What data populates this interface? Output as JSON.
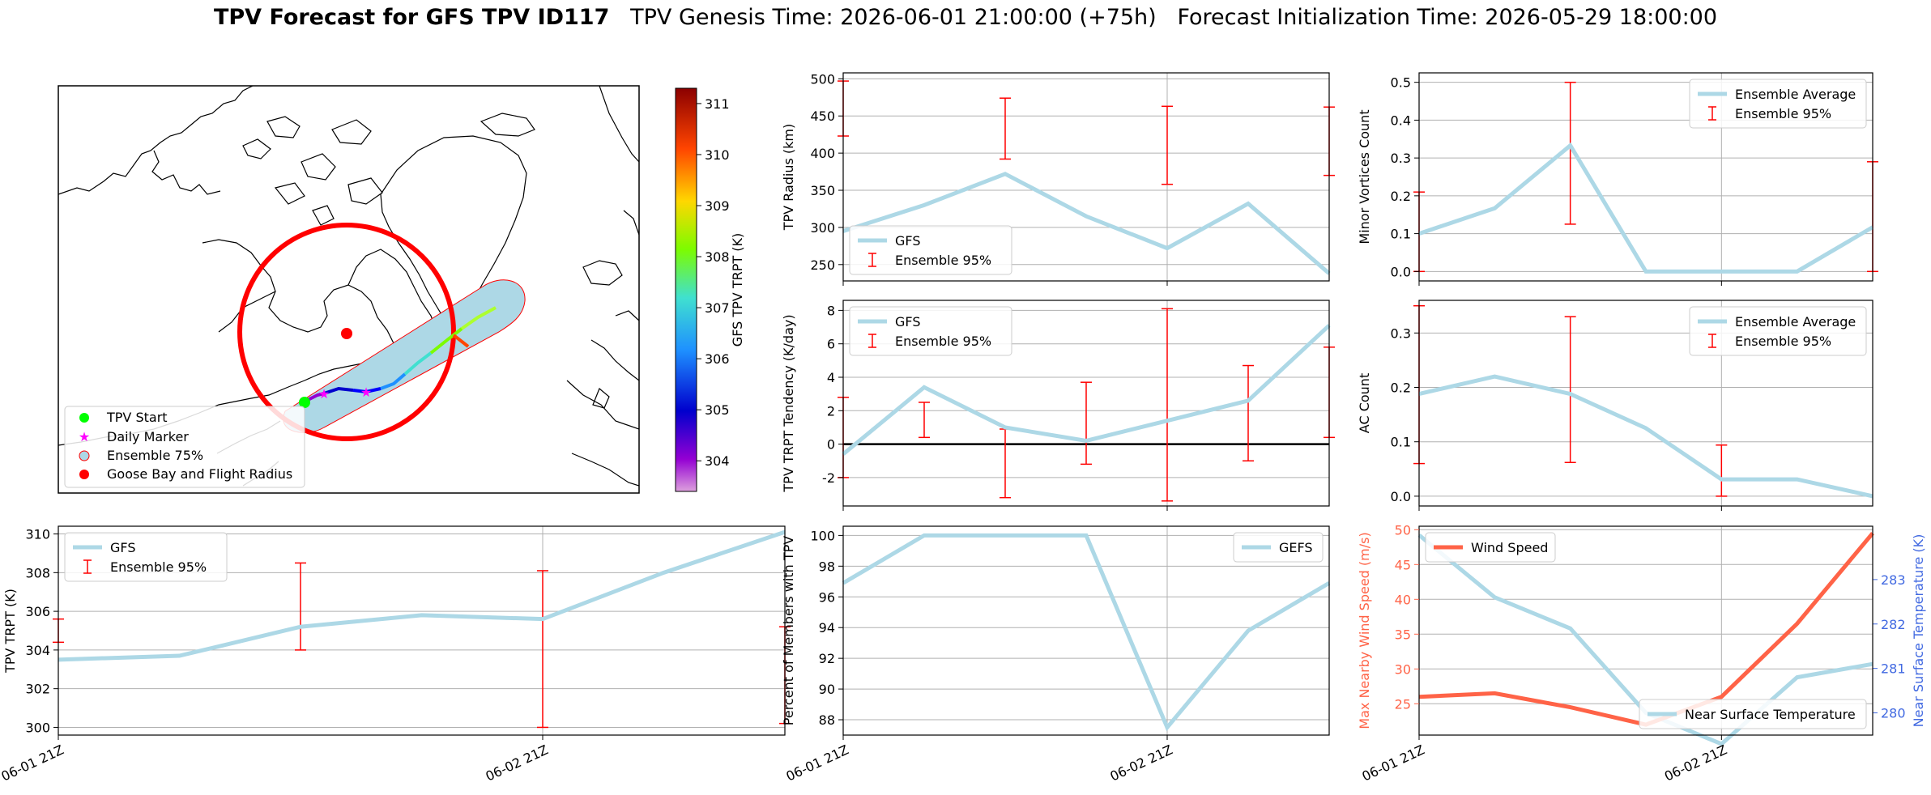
{
  "title": {
    "bold": "TPV Forecast for GFS TPV ID117",
    "genesis": "TPV Genesis Time: 2026-06-01 21:00:00 (+75h)",
    "init": "Forecast Initialization Time: 2026-05-29 18:00:00"
  },
  "colors": {
    "gfs": "#add8e6",
    "ensemble": "#ff0000",
    "wind": "#ff6347",
    "temp_axis": "#4169e1",
    "zero_line": "#000000"
  },
  "time_ticks": [
    "06-01 21Z",
    "06-02 21Z"
  ],
  "map": {
    "legend": [
      "TPV Start",
      "Daily Marker",
      "Ensemble 75%",
      "Goose Bay and Flight Radius"
    ],
    "colorbar_label": "GFS TPV TRPT (K)",
    "colorbar_ticks": [
      304,
      305,
      306,
      307,
      308,
      309,
      310,
      311
    ],
    "colorbar_range": [
      303.4,
      311.3
    ]
  },
  "chart_data": [
    {
      "id": "radius",
      "type": "line",
      "ylabel": "TPV Radius (km)",
      "ylim": [
        228,
        508
      ],
      "yticks": [
        250,
        300,
        350,
        400,
        450,
        500
      ],
      "legend": [
        "GFS",
        "Ensemble 95%"
      ],
      "legend_loc": "lower-left",
      "x": [
        0,
        0.25,
        0.5,
        0.75,
        1.0,
        1.25,
        1.5
      ],
      "series": [
        {
          "name": "GFS",
          "values": [
            295,
            330,
            372,
            315,
            272,
            332,
            238
          ]
        }
      ],
      "errorbars": [
        {
          "x": 0,
          "low": 423,
          "high": 497
        },
        {
          "x": 0.5,
          "low": 392,
          "high": 474
        },
        {
          "x": 1.0,
          "low": 358,
          "high": 463
        },
        {
          "x": 1.5,
          "low": 370,
          "high": 462
        }
      ]
    },
    {
      "id": "minor",
      "type": "line",
      "ylabel": "Minor Vortices Count",
      "ylim": [
        -0.025,
        0.525
      ],
      "yticks": [
        0.0,
        0.1,
        0.2,
        0.3,
        0.4,
        0.5
      ],
      "legend": [
        "Ensemble Average",
        "Ensemble 95%"
      ],
      "legend_loc": "upper-right",
      "x": [
        0,
        0.25,
        0.5,
        0.75,
        1.0,
        1.25,
        1.5
      ],
      "series": [
        {
          "name": "Ensemble Average",
          "values": [
            0.1,
            0.167,
            0.333,
            0.0,
            0.0,
            0.0,
            0.117
          ]
        }
      ],
      "errorbars": [
        {
          "x": 0,
          "low": 0.0,
          "high": 0.21
        },
        {
          "x": 0.5,
          "low": 0.125,
          "high": 0.5
        },
        {
          "x": 1.0,
          "low": 0.0,
          "high": 0.0
        },
        {
          "x": 1.5,
          "low": 0.0,
          "high": 0.29
        }
      ]
    },
    {
      "id": "tendency",
      "type": "line",
      "ylabel": "TPV TRPT Tendency (K/day)",
      "ylim": [
        -3.7,
        8.6
      ],
      "yticks": [
        -2,
        0,
        2,
        4,
        6,
        8
      ],
      "zero_line": true,
      "legend": [
        "GFS",
        "Ensemble 95%"
      ],
      "legend_loc": "upper-left",
      "x": [
        0,
        0.25,
        0.5,
        0.75,
        1.0,
        1.25,
        1.5
      ],
      "series": [
        {
          "name": "GFS",
          "values": [
            -0.6,
            3.4,
            1.0,
            0.2,
            1.4,
            2.6,
            7.1
          ]
        }
      ],
      "errorbars": [
        {
          "x": 0,
          "low": -2.0,
          "high": 2.8
        },
        {
          "x": 0.25,
          "low": 0.4,
          "high": 2.5
        },
        {
          "x": 0.5,
          "low": -3.2,
          "high": 0.9
        },
        {
          "x": 0.75,
          "low": -1.2,
          "high": 3.7
        },
        {
          "x": 1.0,
          "low": -3.4,
          "high": 8.1
        },
        {
          "x": 1.25,
          "low": -1.0,
          "high": 4.7
        },
        {
          "x": 1.5,
          "low": 0.4,
          "high": 5.8
        }
      ]
    },
    {
      "id": "ac",
      "type": "line",
      "ylabel": "AC Count",
      "ylim": [
        -0.018,
        0.36
      ],
      "yticks": [
        0.0,
        0.1,
        0.2,
        0.3
      ],
      "legend": [
        "Ensemble Average",
        "Ensemble 95%"
      ],
      "legend_loc": "upper-right",
      "x": [
        0,
        0.25,
        0.5,
        0.75,
        1.0,
        1.25,
        1.5
      ],
      "series": [
        {
          "name": "Ensemble Average",
          "values": [
            0.188,
            0.22,
            0.188,
            0.125,
            0.031,
            0.031,
            0.0
          ]
        }
      ],
      "errorbars": [
        {
          "x": 0,
          "low": 0.06,
          "high": 0.35
        },
        {
          "x": 0.5,
          "low": 0.062,
          "high": 0.33
        },
        {
          "x": 1.0,
          "low": 0.0,
          "high": 0.094
        }
      ]
    },
    {
      "id": "trpt",
      "type": "line",
      "ylabel": "TPV TRPT (K)",
      "ylim": [
        299.6,
        310.4
      ],
      "yticks": [
        300,
        302,
        304,
        306,
        308,
        310
      ],
      "legend": [
        "GFS",
        "Ensemble 95%"
      ],
      "legend_loc": "upper-left",
      "x": [
        0,
        0.25,
        0.5,
        0.75,
        1.0,
        1.25,
        1.5
      ],
      "series": [
        {
          "name": "GFS",
          "values": [
            303.5,
            303.7,
            305.2,
            305.8,
            305.6,
            308.0,
            310.1
          ]
        }
      ],
      "errorbars": [
        {
          "x": 0,
          "low": 304.4,
          "high": 305.6
        },
        {
          "x": 0.5,
          "low": 304.0,
          "high": 308.5
        },
        {
          "x": 1.0,
          "low": 300.0,
          "high": 308.1
        },
        {
          "x": 1.5,
          "low": 300.2,
          "high": 305.2
        }
      ]
    },
    {
      "id": "percent",
      "type": "line",
      "ylabel": "Percent of Members with TPV",
      "ylim": [
        87.0,
        100.6
      ],
      "yticks": [
        88,
        90,
        92,
        94,
        96,
        98,
        100
      ],
      "legend": [
        "GEFS"
      ],
      "legend_loc": "upper-right",
      "x": [
        0,
        0.25,
        0.5,
        0.75,
        1.0,
        1.25,
        1.5
      ],
      "series": [
        {
          "name": "GEFS",
          "values": [
            96.9,
            100.0,
            100.0,
            100.0,
            87.5,
            93.8,
            96.9
          ]
        }
      ]
    },
    {
      "id": "wind",
      "type": "line",
      "ylabel": "Max Nearby Wind Speed (m/s)",
      "ylabel_right": "Near Surface Temperature (K)",
      "ylim": [
        20.5,
        50.5
      ],
      "yticks": [
        25,
        30,
        35,
        40,
        45,
        50
      ],
      "ylim_right": [
        279.5,
        284.2
      ],
      "yticks_right": [
        280,
        281,
        282,
        283
      ],
      "legend": [
        "Wind Speed"
      ],
      "legend_loc": "upper-left",
      "legend_right": [
        "Near Surface Temperature"
      ],
      "legend_right_loc": "lower-right",
      "x": [
        0,
        0.25,
        0.5,
        0.75,
        1.0,
        1.25,
        1.5
      ],
      "series": [
        {
          "name": "Wind Speed",
          "axis": "left",
          "values": [
            26.0,
            26.5,
            24.5,
            22.0,
            26.0,
            36.5,
            49.5
          ]
        }
      ],
      "series_right": [
        {
          "name": "Near Surface Temperature",
          "axis": "right",
          "values": [
            284.0,
            282.6,
            281.9,
            280.0,
            279.3,
            280.8,
            281.1
          ]
        }
      ]
    }
  ]
}
